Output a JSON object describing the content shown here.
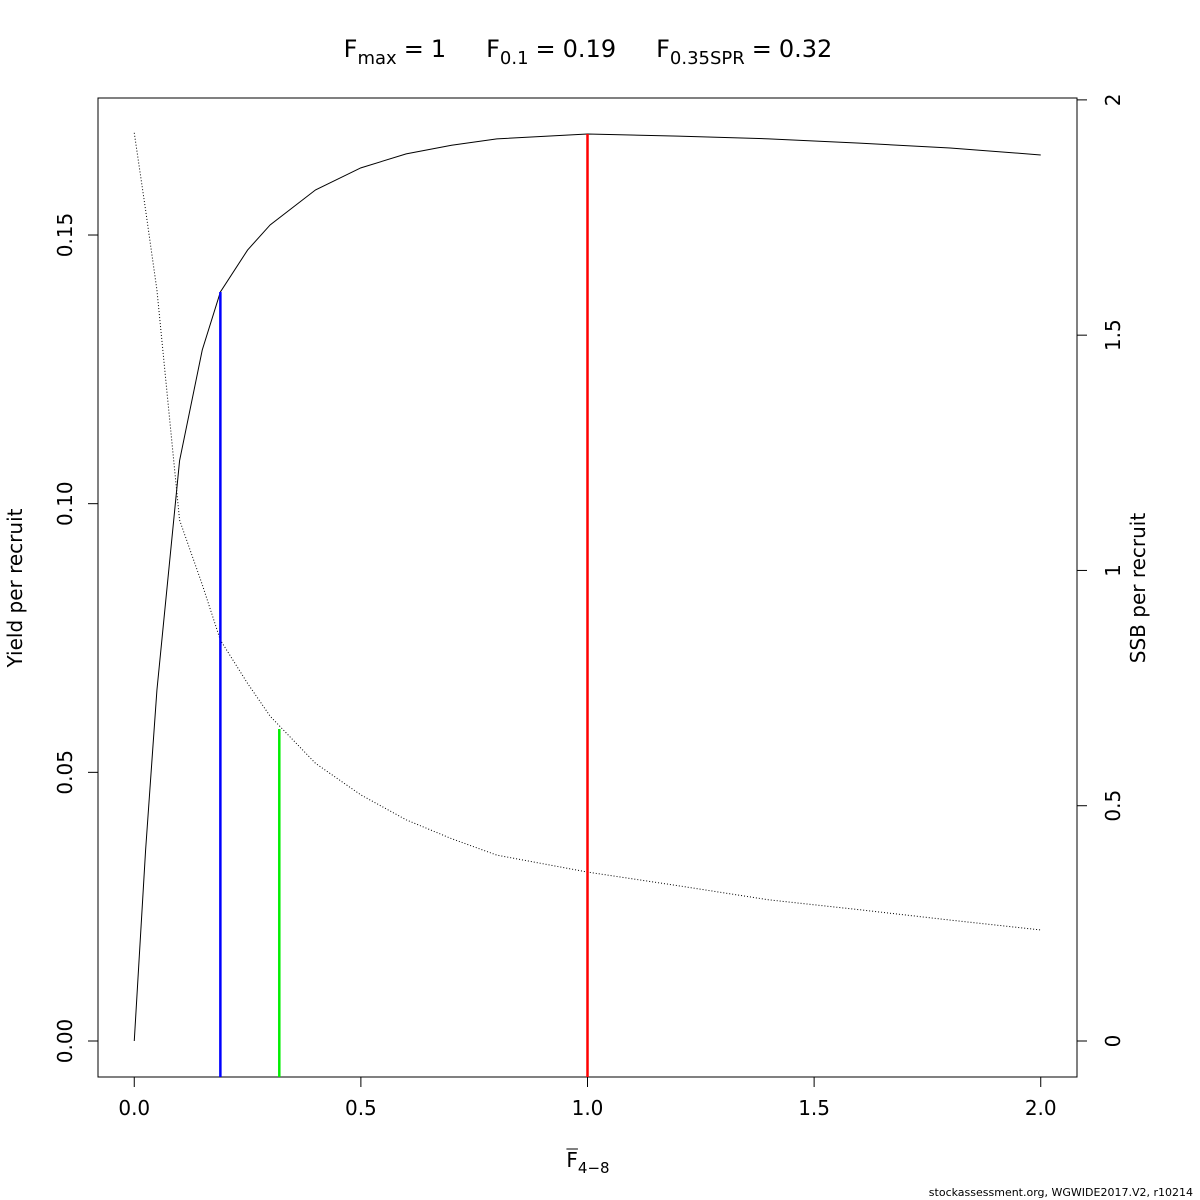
{
  "chart_data": {
    "type": "line",
    "reference_points": [
      {
        "label": "F",
        "subscript": "max",
        "sign": "=",
        "value": 1,
        "color": "#ff0000",
        "top": 0.1688,
        "top_axis": "y"
      },
      {
        "label": "F",
        "subscript": "0.1",
        "sign": "=",
        "value": 0.19,
        "color": "#0000ff",
        "top": 0.1394,
        "top_axis": "y"
      },
      {
        "label": "F",
        "subscript": "0.35SPR",
        "sign": "=",
        "value": 0.32,
        "color": "#00ee00",
        "top": 0.663,
        "top_axis": "y2"
      }
    ],
    "x_label": {
      "text": "F",
      "subscript": "4−8"
    },
    "y_label": "Yield per recruit",
    "y2_label": "SSB per recruit",
    "footer": "stockassessment.org, WGWIDE2017.V2, r10214",
    "x": [
      0,
      0.025,
      0.05,
      0.1,
      0.15,
      0.19,
      0.25,
      0.3,
      0.4,
      0.5,
      0.6,
      0.7,
      0.8,
      1.0,
      1.2,
      1.4,
      1.6,
      1.8,
      2.0
    ],
    "series": [
      {
        "color": "#000000",
        "line_style": "solid",
        "axis": "y",
        "values": [
          0,
          0.0355,
          0.0653,
          0.108,
          0.1286,
          0.1394,
          0.1472,
          0.1519,
          0.1584,
          0.1625,
          0.1651,
          0.1667,
          0.1679,
          0.1688,
          0.1684,
          0.1679,
          0.1671,
          0.1662,
          0.1649
        ]
      },
      {
        "color": "#000000",
        "line_style": "dotted",
        "axis": "y2",
        "values": [
          1.93,
          1.766,
          1.596,
          1.107,
          0.97,
          0.852,
          0.76,
          0.69,
          0.59,
          0.523,
          0.47,
          0.43,
          0.395,
          0.359,
          0.33,
          0.3,
          0.279,
          0.257,
          0.236
        ]
      }
    ],
    "xlim": [
      -0.08,
      2.08
    ],
    "ylim": [
      -0.0067,
      0.1755
    ],
    "y2lim": [
      -0.0765,
      2.004
    ],
    "xticks": [
      {
        "value": 0,
        "label": "0.0"
      },
      0.5,
      {
        "value": 1,
        "label": "1.0"
      },
      1.5,
      {
        "value": 2,
        "label": "2.0"
      }
    ],
    "yticks": [
      {
        "value": 0,
        "label": "0.00"
      },
      {
        "value": 0.05,
        "label": "0.05"
      },
      {
        "value": 0.1,
        "label": "0.10"
      },
      {
        "value": 0.15,
        "label": "0.15"
      }
    ],
    "y2ticks": [
      0,
      0.5,
      1,
      1.5,
      2
    ]
  }
}
